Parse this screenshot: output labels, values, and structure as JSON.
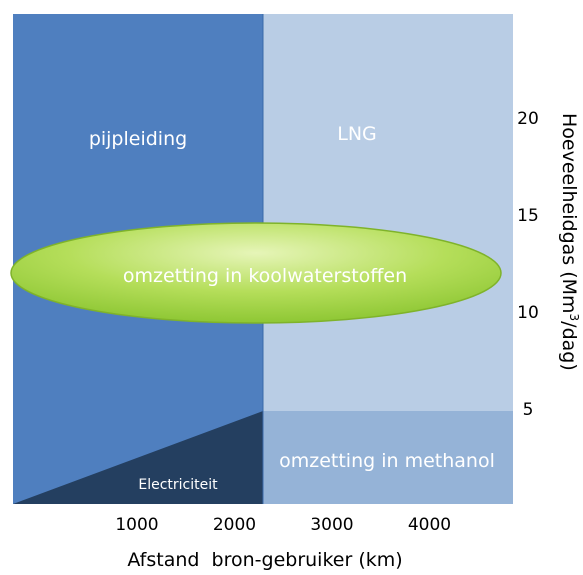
{
  "chart_data": {
    "type": "diagram",
    "regions": [
      {
        "id": "pipeline",
        "label": "pijpleiding",
        "color": "#4f7fbf"
      },
      {
        "id": "lng",
        "label": "LNG",
        "color": "#b9cde5"
      },
      {
        "id": "methanol",
        "label": "omzetting in methanol",
        "color": "#95b3d7"
      },
      {
        "id": "electricity",
        "label": "Electriciteit",
        "color": "#243f60"
      },
      {
        "id": "hydrocarbons",
        "label": "omzetting in koolwaterstoffen",
        "color": "#9bd33c"
      }
    ],
    "x_ticks": [
      1000,
      2000,
      3000,
      4000
    ],
    "y_ticks": [
      5,
      10,
      15,
      20
    ],
    "xlabel": "Afstand  bron-gebruiker (km)",
    "ylabel": {
      "before": "Hoeveelheidgas (Mm",
      "superscript": "3",
      "after": "/dag)"
    },
    "grid": false
  }
}
